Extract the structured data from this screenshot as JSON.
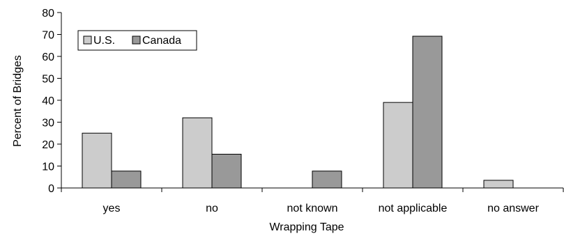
{
  "chart_data": {
    "type": "bar",
    "title": "",
    "xlabel": "Wrapping Tape",
    "ylabel": "Percent of Bridges",
    "categories": [
      "yes",
      "no",
      "not known",
      "not applicable",
      "no answer"
    ],
    "series": [
      {
        "name": "U.S.",
        "color": "#cccccc",
        "values": [
          25,
          32,
          0,
          39,
          3.5
        ]
      },
      {
        "name": "Canada",
        "color": "#999999",
        "values": [
          7.7,
          15.4,
          7.7,
          69.2,
          0
        ]
      }
    ],
    "ylim": [
      0,
      80
    ],
    "yticks": [
      0,
      10,
      20,
      30,
      40,
      50,
      60,
      70,
      80
    ],
    "grid": false,
    "legend_position": "top-left"
  }
}
